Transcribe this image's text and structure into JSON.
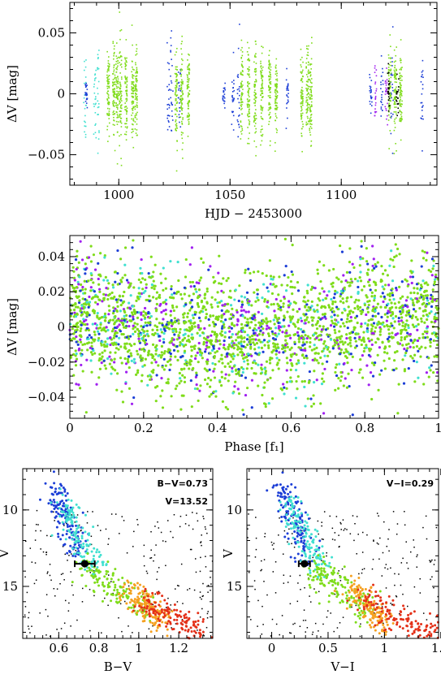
{
  "chart_data": [
    {
      "id": "lightcurve",
      "type": "scatter",
      "xlabel": "HJD − 2453000",
      "ylabel": "ΔV [mag]",
      "xlim": [
        978,
        1143
      ],
      "ylim": [
        0.075,
        -0.075
      ],
      "xticks": [
        1000,
        1050,
        1100
      ],
      "xtick_labels": [
        "1000",
        "1050",
        "1100"
      ],
      "yticks": [
        -0.05,
        0,
        0.05
      ],
      "ytick_labels": [
        "−0.05",
        "0",
        "0.05"
      ],
      "colors": {
        "cyan": "#40e0d0",
        "green": "#7fdc1a",
        "blue": "#1c3ed6",
        "magenta": "#a020f0",
        "black": "#000000"
      },
      "series": [
        {
          "color": "cyan",
          "segments": [
            [
              984.5,
              0.055
            ],
            [
              989.0,
              0.05
            ],
            [
              990.5,
              0.05
            ]
          ]
        },
        {
          "color": "blue",
          "segments": [
            [
              985.0,
              0.012
            ],
            [
              1022.0,
              0.05
            ],
            [
              1023.5,
              0.06
            ],
            [
              1027.0,
              0.03
            ],
            [
              1047.0,
              0.012
            ],
            [
              1051.0,
              0.04
            ],
            [
              1053.5,
              0.05
            ],
            [
              1075.5,
              0.02
            ],
            [
              1113.0,
              0.015
            ],
            [
              1118.0,
              0.035
            ],
            [
              1122.5,
              0.05
            ],
            [
              1136.0,
              0.04
            ]
          ]
        },
        {
          "color": "green",
          "segments": [
            [
              995.0,
              0.04
            ],
            [
              997.5,
              0.045
            ],
            [
              999.0,
              0.05
            ],
            [
              1000.5,
              0.055
            ],
            [
              1003.0,
              0.045
            ],
            [
              1006.0,
              0.045
            ],
            [
              1007.5,
              0.04
            ],
            [
              1025.5,
              0.055
            ],
            [
              1028.0,
              0.05
            ],
            [
              1031.0,
              0.045
            ],
            [
              1055.0,
              0.05
            ],
            [
              1058.0,
              0.05
            ],
            [
              1061.0,
              0.048
            ],
            [
              1064.0,
              0.045
            ],
            [
              1067.5,
              0.04
            ],
            [
              1070.5,
              0.035
            ],
            [
              1082.0,
              0.04
            ],
            [
              1084.5,
              0.05
            ],
            [
              1086.0,
              0.045
            ],
            [
              1121.5,
              0.045
            ],
            [
              1124.0,
              0.05
            ],
            [
              1126.5,
              0.045
            ]
          ]
        },
        {
          "color": "magenta",
          "segments": [
            [
              1115.0,
              0.03
            ],
            [
              1120.0,
              0.035
            ]
          ]
        },
        {
          "color": "black",
          "segments": [
            [
              1121.0,
              0.03
            ],
            [
              1125.0,
              0.025
            ]
          ]
        }
      ]
    },
    {
      "id": "phase",
      "type": "scatter",
      "xlabel": "Phase [f₁]",
      "ylabel": "ΔV [mag]",
      "xlim": [
        0,
        1
      ],
      "ylim": [
        0.052,
        -0.052
      ],
      "xticks": [
        0,
        0.2,
        0.4,
        0.6,
        0.8,
        1
      ],
      "xtick_labels": [
        "0",
        "0.2",
        "0.4",
        "0.6",
        "0.8",
        "1"
      ],
      "yticks": [
        -0.04,
        -0.02,
        0,
        0.02,
        0.04
      ],
      "ytick_labels": [
        "−0.04",
        "−0.02",
        "0",
        "0.02",
        "0.04"
      ],
      "amplitude": 0.007,
      "scatter": 0.018
    },
    {
      "id": "cmd_bv",
      "type": "scatter",
      "xlabel": "B−V",
      "ylabel": "V",
      "xlim": [
        0.42,
        1.37
      ],
      "ylim": [
        7.3,
        18.4
      ],
      "xticks": [
        0.6,
        0.8,
        1,
        1.2
      ],
      "xtick_labels": [
        "0.6",
        "0.8",
        "1",
        "1.2"
      ],
      "yticks": [
        10,
        15
      ],
      "ytick_labels": [
        "10",
        "15"
      ],
      "annotations": [
        "B−V=0.73",
        "V=13.52"
      ],
      "star": {
        "x": 0.73,
        "y": 13.52,
        "xerr": 0.05
      },
      "color_sequence": [
        {
          "color": "#1c3ed6",
          "x": [
            0.58,
            0.7
          ],
          "y": [
            8.5,
            13.0
          ]
        },
        {
          "color": "#40e0d0",
          "x": [
            0.62,
            0.8
          ],
          "y": [
            9.5,
            14.2
          ]
        },
        {
          "color": "#7fdc1a",
          "x": [
            0.72,
            1.05
          ],
          "y": [
            13.8,
            16.5
          ]
        },
        {
          "color": "#f5a020",
          "x": [
            0.95,
            1.12
          ],
          "y": [
            15.0,
            17.5
          ]
        },
        {
          "color": "#e43018",
          "x": [
            1.0,
            1.35
          ],
          "y": [
            15.8,
            18.3
          ]
        }
      ]
    },
    {
      "id": "cmd_vi",
      "type": "scatter",
      "xlabel": "V−I",
      "ylabel": "V",
      "xlim": [
        -0.22,
        1.48
      ],
      "ylim": [
        7.3,
        18.4
      ],
      "xticks": [
        0,
        0.5,
        1,
        1.5
      ],
      "xtick_labels": [
        "0",
        "0.5",
        "1",
        "1.5"
      ],
      "yticks": [
        10,
        15
      ],
      "ytick_labels": [
        "10",
        "15"
      ],
      "annotations": [
        "V−I=0.29"
      ],
      "star": {
        "x": 0.29,
        "y": 13.52,
        "xerr": 0.05
      },
      "color_sequence": [
        {
          "color": "#1c3ed6",
          "x": [
            0.08,
            0.32
          ],
          "y": [
            8.5,
            13.0
          ]
        },
        {
          "color": "#40e0d0",
          "x": [
            0.15,
            0.45
          ],
          "y": [
            9.5,
            14.2
          ]
        },
        {
          "color": "#7fdc1a",
          "x": [
            0.35,
            0.85
          ],
          "y": [
            13.8,
            16.5
          ]
        },
        {
          "color": "#f5a020",
          "x": [
            0.7,
            1.0
          ],
          "y": [
            15.0,
            17.5
          ]
        },
        {
          "color": "#e43018",
          "x": [
            0.8,
            1.45
          ],
          "y": [
            15.8,
            18.3
          ]
        }
      ]
    }
  ]
}
